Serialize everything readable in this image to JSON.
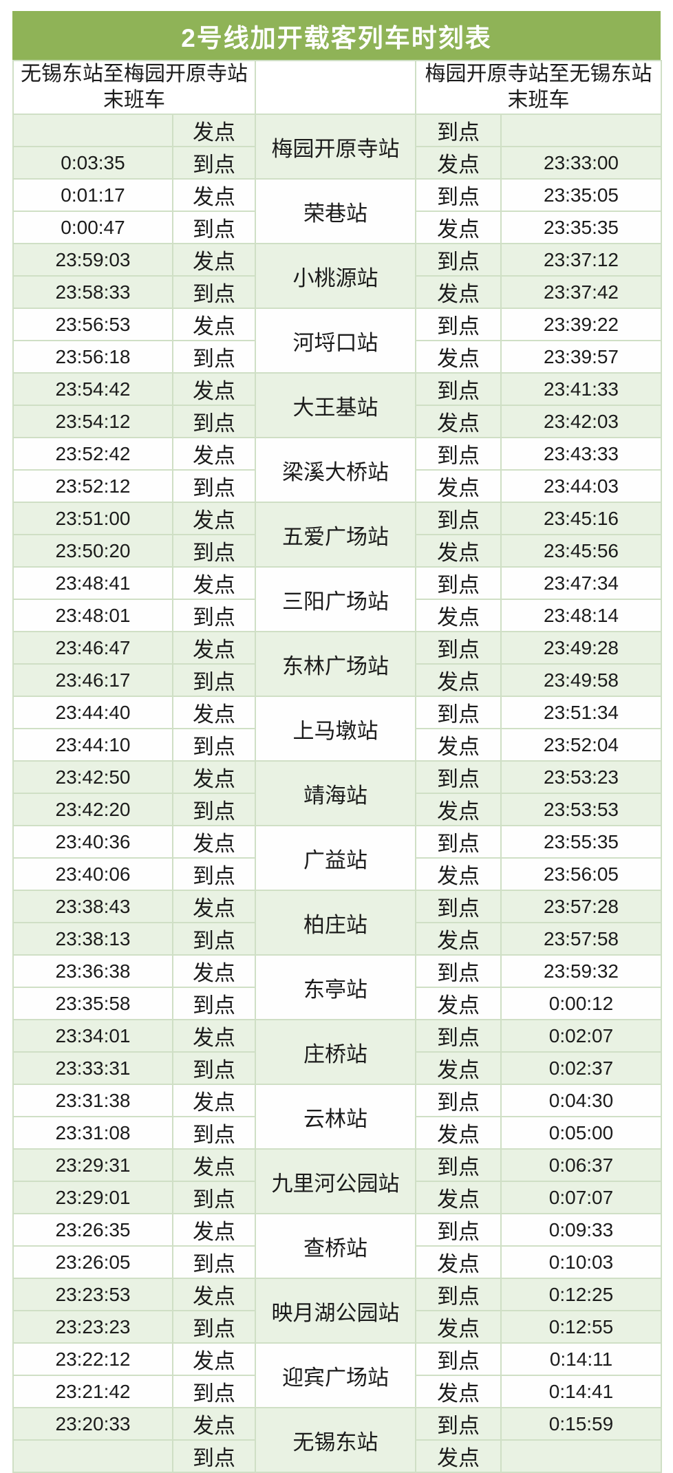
{
  "title": "2号线加开载客列车时刻表",
  "headers": {
    "left_route": "无锡东站至梅园开原寺站",
    "left_sub": "末班车",
    "right_route": "梅园开原寺站至无锡东站",
    "right_sub": "末班车"
  },
  "labels": {
    "depart": "发点",
    "arrive": "到点"
  },
  "colors": {
    "title_bg": "#8fb357",
    "title_text": "#ffffff",
    "row_green": "#e9f2e3",
    "row_white": "#fefefe",
    "border": "#cfdfc5",
    "text": "#1b1b1b"
  },
  "stations": [
    {
      "name": "梅园开原寺站",
      "left_depart": "",
      "left_arrive": "0:03:35",
      "right_arrive": "",
      "right_depart": "23:33:00"
    },
    {
      "name": "荣巷站",
      "left_depart": "0:01:17",
      "left_arrive": "0:00:47",
      "right_arrive": "23:35:05",
      "right_depart": "23:35:35"
    },
    {
      "name": "小桃源站",
      "left_depart": "23:59:03",
      "left_arrive": "23:58:33",
      "right_arrive": "23:37:12",
      "right_depart": "23:37:42"
    },
    {
      "name": "河埒口站",
      "left_depart": "23:56:53",
      "left_arrive": "23:56:18",
      "right_arrive": "23:39:22",
      "right_depart": "23:39:57"
    },
    {
      "name": "大王基站",
      "left_depart": "23:54:42",
      "left_arrive": "23:54:12",
      "right_arrive": "23:41:33",
      "right_depart": "23:42:03"
    },
    {
      "name": "梁溪大桥站",
      "left_depart": "23:52:42",
      "left_arrive": "23:52:12",
      "right_arrive": "23:43:33",
      "right_depart": "23:44:03"
    },
    {
      "name": "五爱广场站",
      "left_depart": "23:51:00",
      "left_arrive": "23:50:20",
      "right_arrive": "23:45:16",
      "right_depart": "23:45:56"
    },
    {
      "name": "三阳广场站",
      "left_depart": "23:48:41",
      "left_arrive": "23:48:01",
      "right_arrive": "23:47:34",
      "right_depart": "23:48:14"
    },
    {
      "name": "东林广场站",
      "left_depart": "23:46:47",
      "left_arrive": "23:46:17",
      "right_arrive": "23:49:28",
      "right_depart": "23:49:58"
    },
    {
      "name": "上马墩站",
      "left_depart": "23:44:40",
      "left_arrive": "23:44:10",
      "right_arrive": "23:51:34",
      "right_depart": "23:52:04"
    },
    {
      "name": "靖海站",
      "left_depart": "23:42:50",
      "left_arrive": "23:42:20",
      "right_arrive": "23:53:23",
      "right_depart": "23:53:53"
    },
    {
      "name": "广益站",
      "left_depart": "23:40:36",
      "left_arrive": "23:40:06",
      "right_arrive": "23:55:35",
      "right_depart": "23:56:05"
    },
    {
      "name": "柏庄站",
      "left_depart": "23:38:43",
      "left_arrive": "23:38:13",
      "right_arrive": "23:57:28",
      "right_depart": "23:57:58"
    },
    {
      "name": "东亭站",
      "left_depart": "23:36:38",
      "left_arrive": "23:35:58",
      "right_arrive": "23:59:32",
      "right_depart": "0:00:12"
    },
    {
      "name": "庄桥站",
      "left_depart": "23:34:01",
      "left_arrive": "23:33:31",
      "right_arrive": "0:02:07",
      "right_depart": "0:02:37"
    },
    {
      "name": "云林站",
      "left_depart": "23:31:38",
      "left_arrive": "23:31:08",
      "right_arrive": "0:04:30",
      "right_depart": "0:05:00"
    },
    {
      "name": "九里河公园站",
      "left_depart": "23:29:31",
      "left_arrive": "23:29:01",
      "right_arrive": "0:06:37",
      "right_depart": "0:07:07"
    },
    {
      "name": "查桥站",
      "left_depart": "23:26:35",
      "left_arrive": "23:26:05",
      "right_arrive": "0:09:33",
      "right_depart": "0:10:03"
    },
    {
      "name": "映月湖公园站",
      "left_depart": "23:23:53",
      "left_arrive": "23:23:23",
      "right_arrive": "0:12:25",
      "right_depart": "0:12:55"
    },
    {
      "name": "迎宾广场站",
      "left_depart": "23:22:12",
      "left_arrive": "23:21:42",
      "right_arrive": "0:14:11",
      "right_depart": "0:14:41"
    },
    {
      "name": "无锡东站",
      "left_depart": "23:20:33",
      "left_arrive": "",
      "right_arrive": "0:15:59",
      "right_depart": ""
    }
  ]
}
